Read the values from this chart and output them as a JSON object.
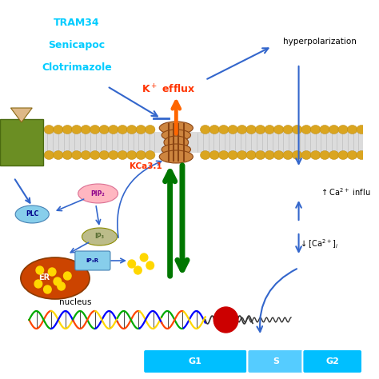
{
  "bg_color": "#ffffff",
  "cyan_labels": [
    "TRAM34",
    "Senicapoc",
    "Clotrimazole"
  ],
  "cyan_color": "#00CCFF",
  "red_color": "#FF3300",
  "blue_color": "#3366CC",
  "green_color": "#007700",
  "membrane_gold": "#DAA520",
  "membrane_gray": "#DCDCDC",
  "receptor_green": "#6B8E23",
  "channel_brown": "#CD853F",
  "channel_dark": "#8B4513",
  "er_color": "#CC4400",
  "plc_color": "#87CEEB",
  "pip2_color": "#FFB6C1",
  "ip3_color": "#BCBC8A",
  "ip3r_color": "#87CEEB",
  "triangle_color": "#DEB887",
  "dna_colors": [
    "#FF4500",
    "#FFD700",
    "#00AA00",
    "#0000FF"
  ],
  "bar_cyan": "#00BFFF",
  "bar_light": "#55CCFF"
}
